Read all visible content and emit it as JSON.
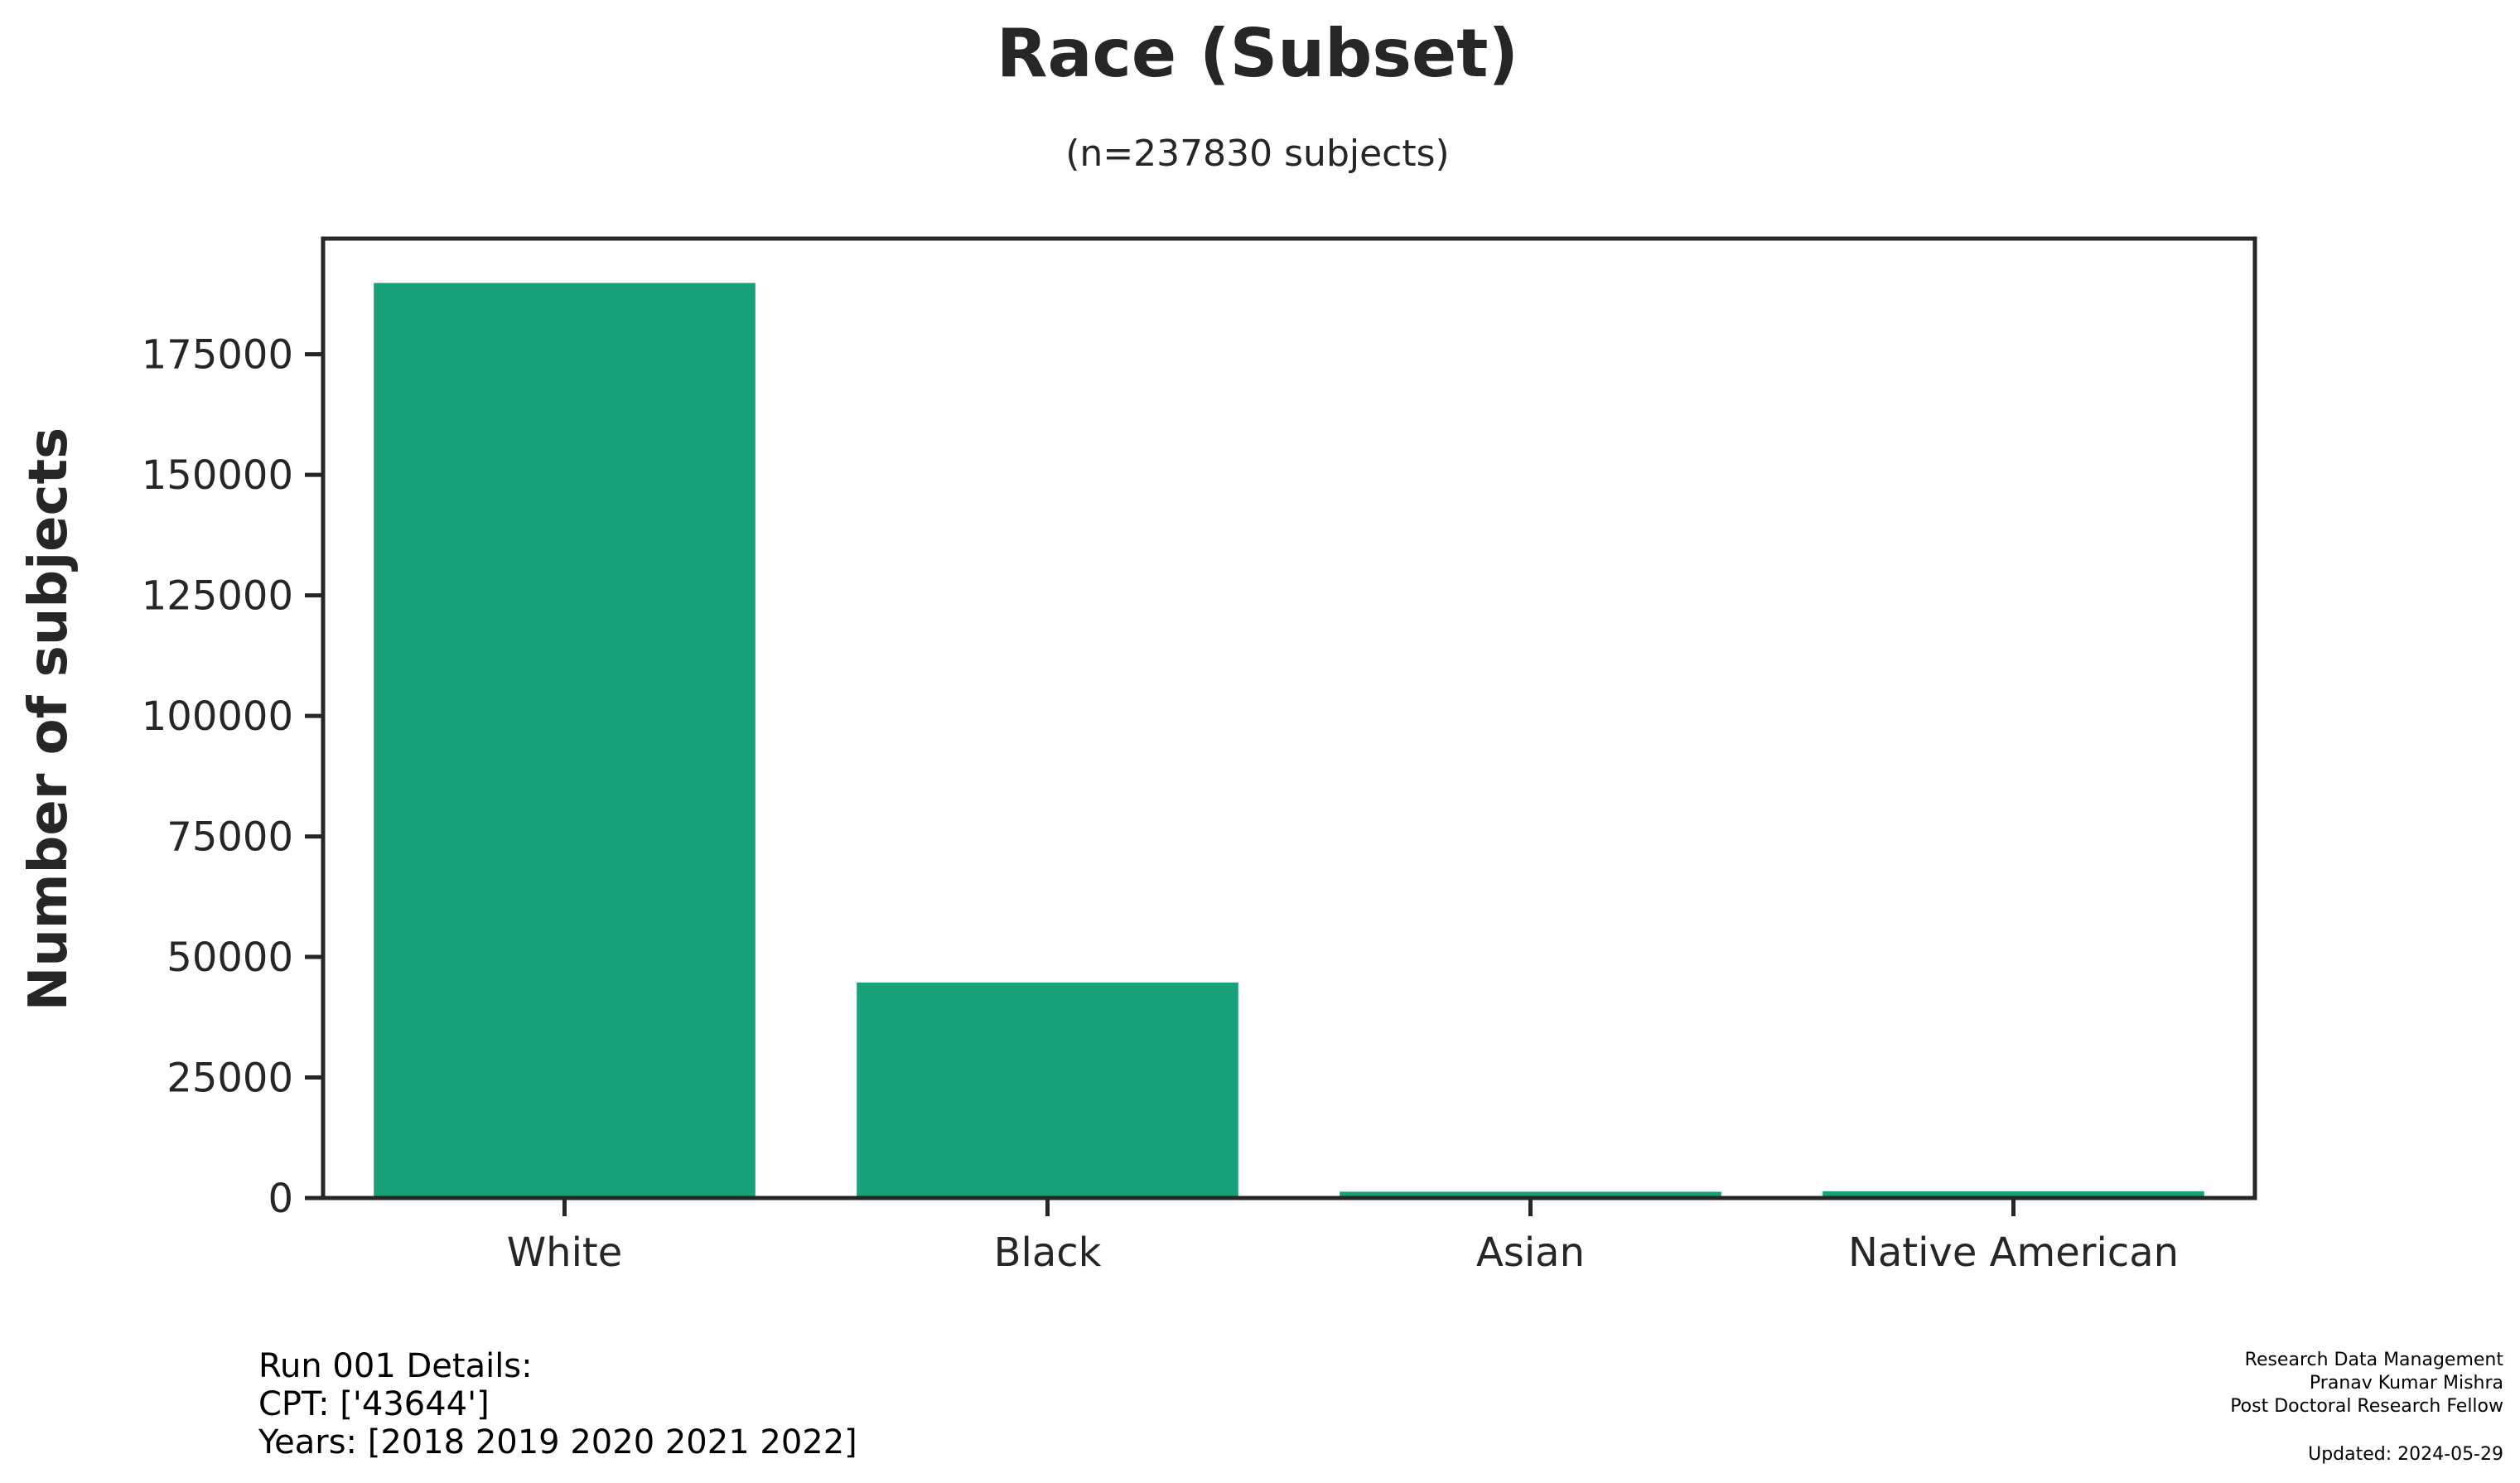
{
  "chart_data": {
    "type": "bar",
    "title": "Race (Subset)",
    "subtitle": "(n=237830 subjects)",
    "xlabel": "",
    "ylabel": "Number of subjects",
    "categories": [
      "White",
      "Black",
      "Asian",
      "Native American"
    ],
    "values": [
      189800,
      44700,
      1300,
      1400
    ],
    "ylim": [
      0,
      199000
    ],
    "yticks": [
      0,
      25000,
      50000,
      75000,
      100000,
      125000,
      150000,
      175000
    ],
    "grid": false,
    "legend": "none",
    "bar_color": "#18a078",
    "axis_color": "#262626"
  },
  "footer": {
    "left_lines": [
      "Run 001 Details:",
      "CPT: ['43644']",
      "Years: [2018 2019 2020 2021 2022]"
    ],
    "right_lines": [
      "Research Data Management",
      "Pranav Kumar Mishra",
      "Post Doctoral Research Fellow"
    ],
    "updated": "Updated: 2024-05-29"
  }
}
